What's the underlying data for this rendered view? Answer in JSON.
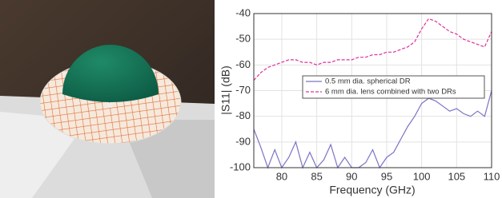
{
  "chart_data": {
    "type": "line",
    "xlabel": "Frequency (GHz)",
    "ylabel": "|S11| (dB)",
    "x": [
      76,
      77,
      78,
      79,
      80,
      81,
      82,
      83,
      84,
      85,
      86,
      87,
      88,
      89,
      90,
      91,
      92,
      93,
      94,
      95,
      96,
      97,
      98,
      99,
      100,
      101,
      102,
      103,
      104,
      105,
      106,
      107,
      108,
      109,
      110
    ],
    "series": [
      {
        "name": "0.5 mm dia. spherical DR",
        "color": "#7a74c4",
        "style": "solid",
        "values": [
          -85,
          -92,
          -100,
          -93,
          -100,
          -96,
          -90,
          -100,
          -94,
          -100,
          -97,
          -91,
          -100,
          -96,
          -100,
          -100,
          -98,
          -93,
          -100,
          -96,
          -94,
          -89,
          -84,
          -80,
          -75,
          -73,
          -74,
          -76,
          -78,
          -77,
          -79,
          -80,
          -78,
          -80,
          -70
        ]
      },
      {
        "name": "6 mm dia. lens combined with two DRs",
        "color": "#e0309a",
        "style": "dashed",
        "values": [
          -66,
          -63,
          -61,
          -60,
          -59,
          -58,
          -58,
          -59,
          -59,
          -60,
          -59,
          -59,
          -58,
          -58,
          -58,
          -57,
          -57,
          -56,
          -56,
          -55,
          -55,
          -54,
          -53,
          -51,
          -46,
          -42,
          -43,
          -45,
          -47,
          -48,
          -50,
          -51,
          -52,
          -53,
          -47
        ]
      }
    ],
    "xlim": [
      76,
      110
    ],
    "xticks": [
      80,
      85,
      90,
      95,
      100,
      105,
      110
    ],
    "ylim": [
      -100,
      -40
    ],
    "yticks": [
      -100,
      -90,
      -80,
      -70,
      -60,
      -50,
      -40
    ],
    "grid": true,
    "legend": "upper-center"
  }
}
